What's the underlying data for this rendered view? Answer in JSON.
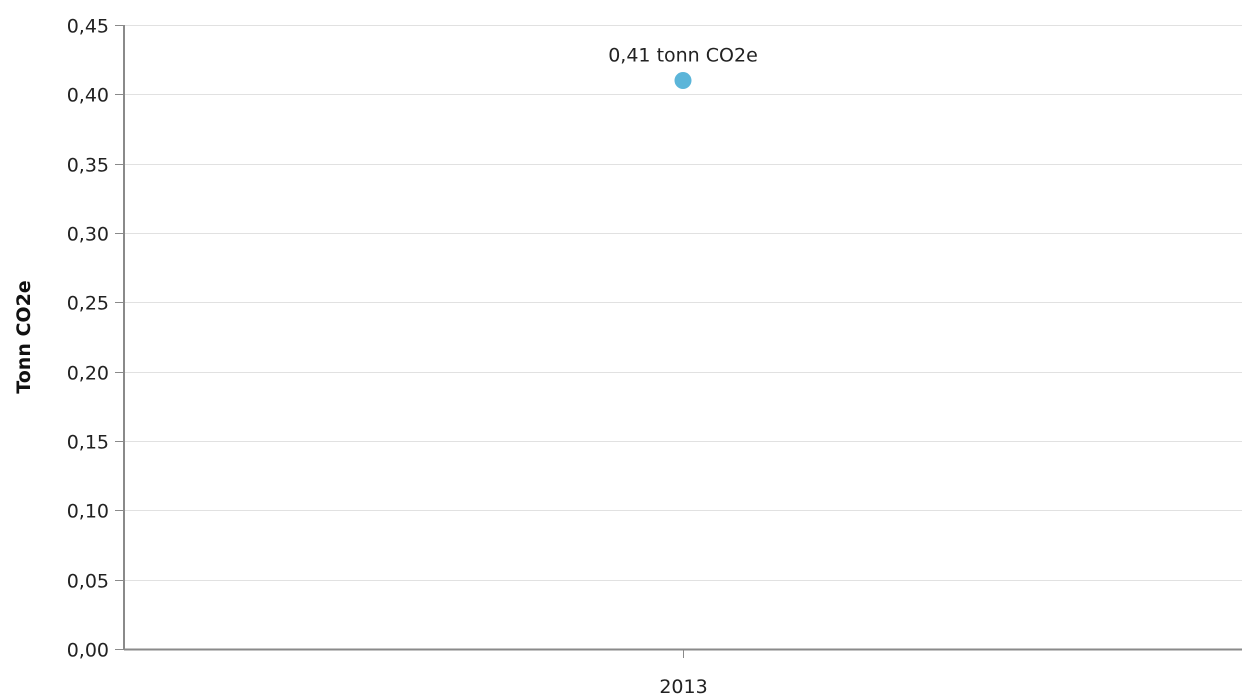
{
  "chart_data": {
    "type": "scatter",
    "ylabel": "Tonn CO2e",
    "xlabel": "",
    "categories": [
      "2013"
    ],
    "series": [
      {
        "values": [
          0.41
        ],
        "labels": [
          "0,41 tonn CO2e"
        ],
        "color": "#5bb5d9"
      }
    ],
    "ylim": [
      0,
      0.45
    ],
    "yticks": [
      0,
      0.05,
      0.1,
      0.15,
      0.2,
      0.25,
      0.3,
      0.35,
      0.4,
      0.45
    ],
    "ytick_labels": [
      "0,00",
      "0,05",
      "0,10",
      "0,15",
      "0,20",
      "0,25",
      "0,30",
      "0,35",
      "0,40",
      "0,45"
    ],
    "grid": true,
    "legend": "none"
  }
}
